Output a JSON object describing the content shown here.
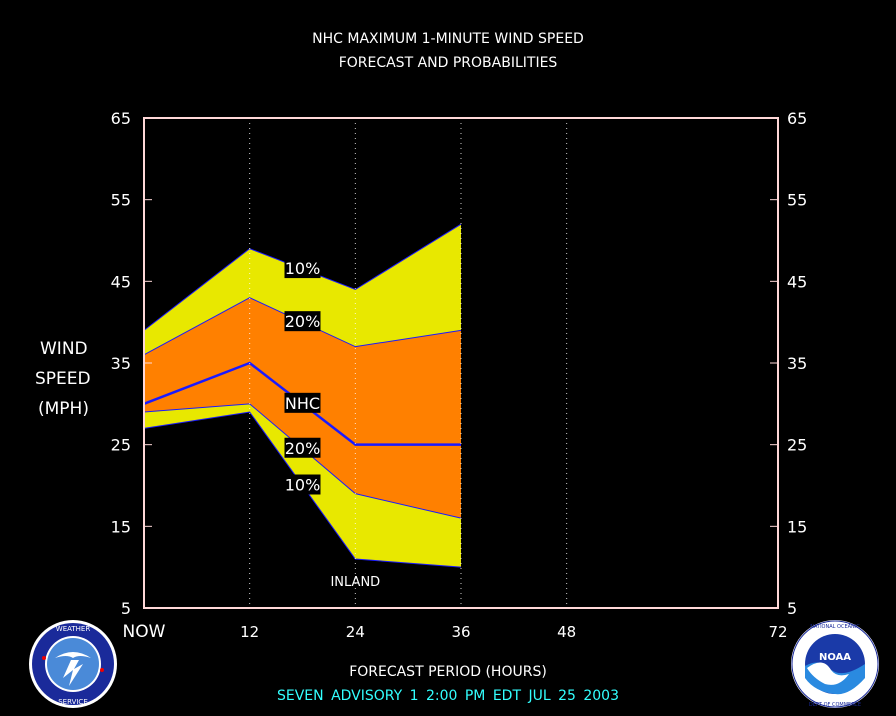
{
  "title_line1": "NHC MAXIMUM 1-MINUTE WIND SPEED",
  "title_line2": "FORECAST AND PROBABILITIES",
  "ylabel_lines": [
    "WIND",
    "SPEED",
    "(MPH)"
  ],
  "xlabel": "FORECAST PERIOD (HOURS)",
  "footer": "SEVEN   ADVISORY  1 2:00 PM EDT JUL 25 2003",
  "logos": {
    "left": "National Weather Service",
    "right": "NOAA",
    "right_ring_text": "NATIONAL OCEANIC AND ATMOSPHERIC ADMINISTRATION · U.S. DEPARTMENT OF COMMERCE"
  },
  "colors": {
    "yellow": "#e8e800",
    "orange": "#ff8000",
    "line": "#1a1aff",
    "frame": "#ffd8d8",
    "footer": "#33ffff"
  },
  "chart_data": {
    "type": "area",
    "x": [
      0,
      12,
      24,
      36
    ],
    "xlim": [
      0,
      72
    ],
    "ylim": [
      5,
      65
    ],
    "xticks": [
      0,
      12,
      24,
      36,
      48,
      72
    ],
    "xtick_labels": [
      "NOW",
      "12",
      "24",
      "36",
      "48",
      "72"
    ],
    "yticks": [
      5,
      15,
      25,
      35,
      45,
      55,
      65
    ],
    "ytick_labels": [
      "5",
      "15",
      "25",
      "35",
      "45",
      "55",
      "65"
    ],
    "vgrid_x": [
      12,
      24,
      36,
      48
    ],
    "series": [
      {
        "name": "10%",
        "band": "upper",
        "values": [
          39,
          49,
          44,
          52
        ]
      },
      {
        "name": "20%",
        "band": "upper",
        "values": [
          36,
          43,
          37,
          39
        ]
      },
      {
        "name": "NHC",
        "values": [
          30,
          35,
          25,
          25
        ]
      },
      {
        "name": "20%",
        "band": "lower",
        "values": [
          29,
          30,
          19,
          16
        ]
      },
      {
        "name": "10%",
        "band": "lower",
        "values": [
          27,
          29,
          11,
          10
        ]
      }
    ],
    "annotations": [
      {
        "text": "10%",
        "x": 18,
        "y": 46.5
      },
      {
        "text": "20%",
        "x": 18,
        "y": 40
      },
      {
        "text": "NHC",
        "x": 18,
        "y": 30
      },
      {
        "text": "20%",
        "x": 18,
        "y": 24.5
      },
      {
        "text": "10%",
        "x": 18,
        "y": 20
      },
      {
        "text": "INLAND",
        "x": 24,
        "y": 8.3
      }
    ]
  }
}
